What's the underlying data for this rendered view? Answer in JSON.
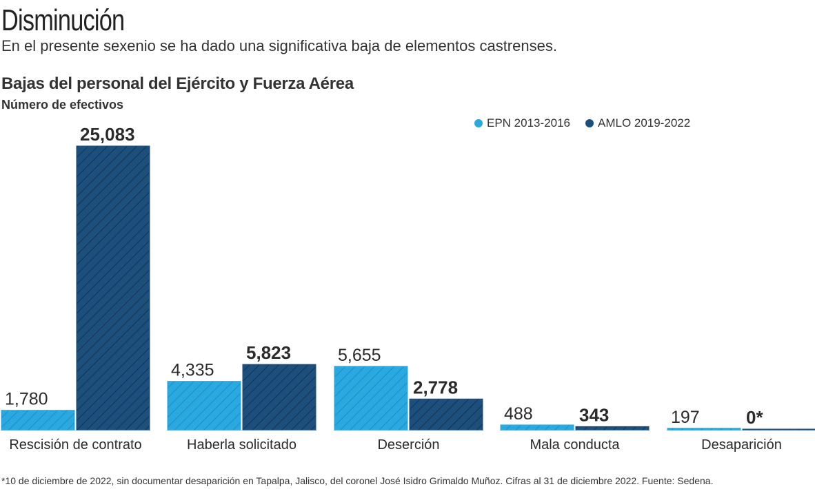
{
  "headline": "Disminución",
  "subtitle": "En el presente sexenio se ha dado una significativa baja de elementos castrenses.",
  "footnote": "*10 de diciembre de 2022, sin documentar desaparición en Tapalpa, Jalisco, del coronel José Isidro Grimaldo Muñoz. Cifras al 31 de diciembre 2022. Fuente: Sedena.",
  "colors": {
    "epn": "#2aa9e0",
    "amlo": "#1d4f7c",
    "text": "#2b2b2b"
  },
  "chart_data": {
    "type": "bar",
    "title": "Bajas del personal del Ejército y Fuerza Aérea",
    "ylabel": "Número de efectivos",
    "xlabel": "",
    "ylim": [
      0,
      25083
    ],
    "grid": false,
    "legend_position": "top-right",
    "categories": [
      "Rescisión de contrato",
      "Haberla solicitado",
      "Deserción",
      "Mala conducta",
      "Desaparición"
    ],
    "series": [
      {
        "name": "EPN 2013-2016",
        "values": [
          1780,
          4335,
          5655,
          488,
          197
        ],
        "labels": [
          "1,780",
          "4,335",
          "5,655",
          "488",
          "197"
        ]
      },
      {
        "name": "AMLO 2019-2022",
        "values": [
          25083,
          5823,
          2778,
          343,
          0
        ],
        "labels": [
          "25,083",
          "5,823",
          "2,778",
          "343",
          "0*"
        ]
      }
    ]
  }
}
